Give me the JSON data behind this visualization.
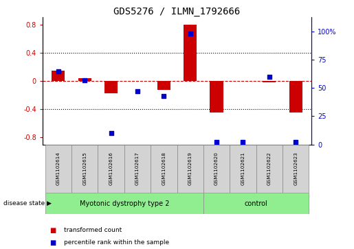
{
  "title": "GDS5276 / ILMN_1792666",
  "samples": [
    "GSM1102614",
    "GSM1102615",
    "GSM1102616",
    "GSM1102617",
    "GSM1102618",
    "GSM1102619",
    "GSM1102620",
    "GSM1102621",
    "GSM1102622",
    "GSM1102623"
  ],
  "bar_values": [
    0.15,
    0.04,
    -0.18,
    0.0,
    -0.13,
    0.8,
    -0.45,
    0.0,
    -0.02,
    -0.45
  ],
  "scatter_values": [
    0.65,
    0.57,
    0.1,
    0.47,
    0.43,
    0.98,
    0.02,
    0.02,
    0.6,
    0.02
  ],
  "groups": [
    {
      "label": "Myotonic dystrophy type 2",
      "start": 0,
      "end": 5,
      "color": "#90EE90"
    },
    {
      "label": "control",
      "start": 6,
      "end": 9,
      "color": "#90EE90"
    }
  ],
  "bar_color": "#CC0000",
  "scatter_color": "#0000CC",
  "left_ylim": [
    -0.9,
    0.9
  ],
  "right_ylim": [
    0,
    1.125
  ],
  "left_yticks": [
    -0.8,
    -0.4,
    0.0,
    0.4,
    0.8
  ],
  "left_yticklabels": [
    "-0.8",
    "-0.4",
    "0",
    "0.4",
    "0.8"
  ],
  "right_yticks": [
    0,
    0.25,
    0.5,
    0.75,
    1.0
  ],
  "right_yticklabels": [
    "0",
    "25",
    "50",
    "75",
    "100%"
  ],
  "hline_y": 0.0,
  "dotted_lines": [
    -0.4,
    0.4
  ],
  "disease_state_label": "disease state",
  "legend_bar_label": "transformed count",
  "legend_scatter_label": "percentile rank within the sample",
  "sample_box_color": "#D3D3D3",
  "figsize": [
    5.15,
    3.63
  ],
  "dpi": 100
}
